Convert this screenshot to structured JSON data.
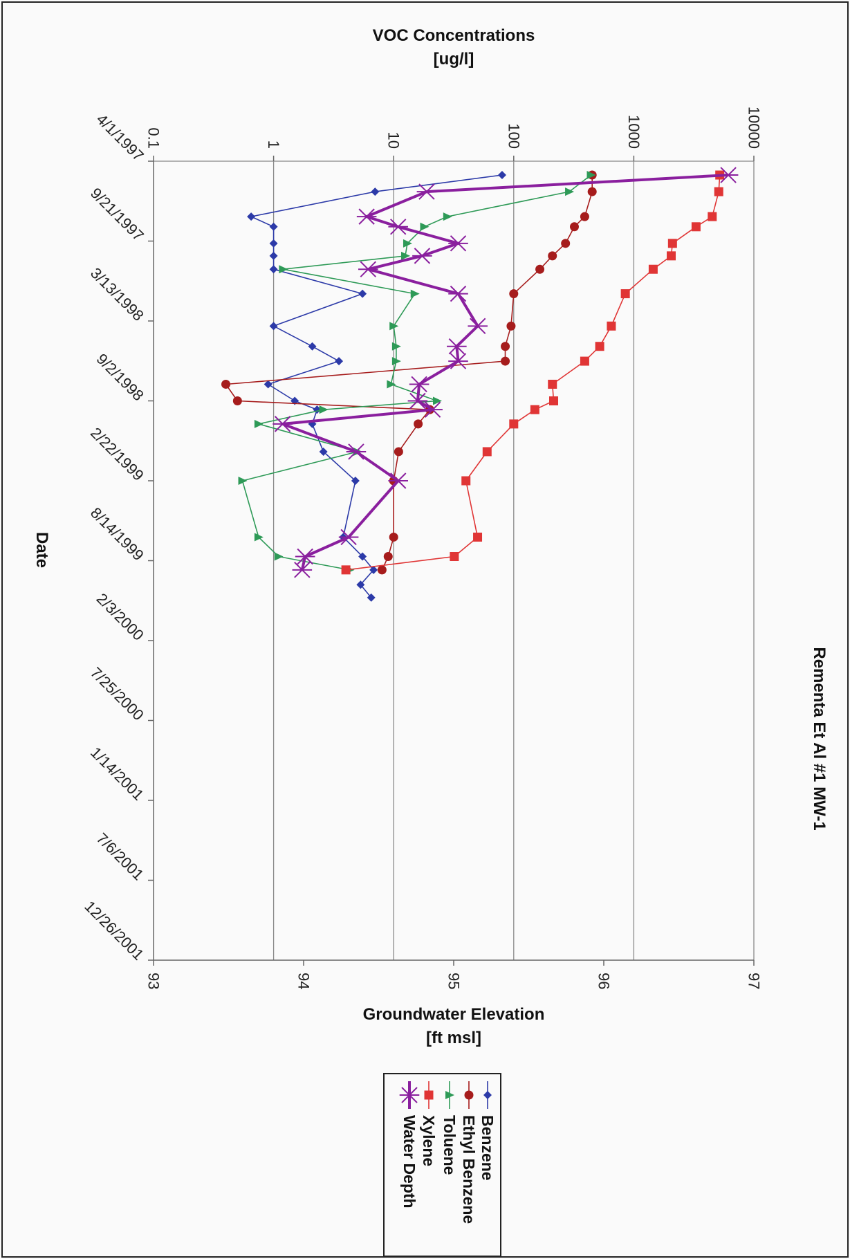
{
  "chart_data": {
    "type": "line",
    "title": "Rementa Et Al #1 MW-1",
    "xlabel": "Date",
    "x": [
      "4/1/1997",
      "9/21/1997",
      "3/13/1998",
      "9/2/1998",
      "2/22/1999",
      "8/14/1999",
      "2/3/2000",
      "7/25/2000",
      "1/14/2001",
      "7/6/2001",
      "12/26/2001"
    ],
    "x_axis_labels": [
      "4/1/1997",
      "9/21/1997",
      "3/13/1998",
      "9/2/1998",
      "2/22/1999",
      "8/14/1999",
      "2/3/2000",
      "7/25/2000",
      "1/14/2001",
      "7/6/2001",
      "12/26/2001"
    ],
    "y_left": {
      "label_line1": "VOC Concentrations",
      "label_line2": "[ug/l]",
      "scale": "log",
      "range": [
        0.1,
        10000
      ],
      "ticks": [
        "0.1",
        "1",
        "10",
        "100",
        "1000",
        "10000"
      ],
      "gridlines": [
        1,
        10,
        100,
        1000
      ]
    },
    "y_right": {
      "label_line1": "Groundwater Elevation",
      "label_line2": "[ft msl]",
      "range": [
        93,
        97
      ],
      "ticks": [
        "93",
        "94",
        "95",
        "96",
        "97"
      ]
    },
    "legend_position": "right",
    "series": [
      {
        "name": "Benzene",
        "axis": "left",
        "color": "#2c3aa8",
        "marker": "diamond",
        "width": 1.6,
        "points": [
          [
            "1997-05-01",
            80
          ],
          [
            "1997-06-06",
            7
          ],
          [
            "1997-07-30",
            0.65
          ],
          [
            "1997-08-21",
            1
          ],
          [
            "1997-09-26",
            1
          ],
          [
            "1997-10-23",
            1
          ],
          [
            "1997-11-21",
            1
          ],
          [
            "1998-01-13",
            5.5
          ],
          [
            "1998-03-24",
            1
          ],
          [
            "1998-05-07",
            2.1
          ],
          [
            "1998-06-08",
            3.5
          ],
          [
            "1998-07-28",
            0.9
          ],
          [
            "1998-09-02",
            1.5
          ],
          [
            "1998-09-21",
            2.3
          ],
          [
            "1998-10-22",
            2.1
          ],
          [
            "1998-12-21",
            2.6
          ],
          [
            "1999-02-22",
            4.8
          ],
          [
            "1999-06-24",
            3.8
          ],
          [
            "1999-08-05",
            5.5
          ],
          [
            "1999-09-03",
            6.8
          ],
          [
            "1999-10-05",
            5.3
          ],
          [
            "1999-11-02",
            6.5
          ]
        ]
      },
      {
        "name": "Ethyl Benzene",
        "axis": "left",
        "color": "#a61c1c",
        "marker": "circle",
        "width": 1.6,
        "points": [
          [
            "1997-05-01",
            450
          ],
          [
            "1997-06-06",
            450
          ],
          [
            "1997-07-30",
            390
          ],
          [
            "1997-08-21",
            320
          ],
          [
            "1997-09-26",
            270
          ],
          [
            "1997-10-23",
            210
          ],
          [
            "1997-11-21",
            165
          ],
          [
            "1998-01-13",
            100
          ],
          [
            "1998-03-24",
            95
          ],
          [
            "1998-05-07",
            85
          ],
          [
            "1998-06-08",
            85
          ],
          [
            "1998-07-28",
            0.4
          ],
          [
            "1998-09-02",
            0.5
          ],
          [
            "1998-09-21",
            20
          ],
          [
            "1998-10-22",
            16
          ],
          [
            "1998-12-21",
            11
          ],
          [
            "1999-02-22",
            10
          ],
          [
            "1999-06-24",
            10
          ],
          [
            "1999-08-05",
            9
          ],
          [
            "1999-09-03",
            8
          ]
        ]
      },
      {
        "name": "Toluene",
        "axis": "left",
        "color": "#2e9a57",
        "marker": "triangle",
        "width": 1.6,
        "points": [
          [
            "1997-05-01",
            440
          ],
          [
            "1997-06-06",
            290
          ],
          [
            "1997-07-30",
            28
          ],
          [
            "1997-08-21",
            18
          ],
          [
            "1997-09-26",
            13
          ],
          [
            "1997-10-23",
            12.5
          ],
          [
            "1997-11-21",
            1.2
          ],
          [
            "1998-01-13",
            15
          ],
          [
            "1998-03-24",
            10
          ],
          [
            "1998-05-07",
            10.5
          ],
          [
            "1998-06-08",
            10.5
          ],
          [
            "1998-07-28",
            9.5
          ],
          [
            "1998-09-02",
            23
          ],
          [
            "1998-09-21",
            2.6
          ],
          [
            "1998-10-22",
            0.75
          ],
          [
            "1998-12-21",
            5
          ],
          [
            "1999-02-22",
            0.55
          ],
          [
            "1999-06-24",
            0.75
          ],
          [
            "1999-08-05",
            1.1
          ],
          [
            "1999-09-03",
            4.3
          ]
        ]
      },
      {
        "name": "Xylene",
        "axis": "left",
        "color": "#e03535",
        "marker": "square",
        "width": 1.6,
        "points": [
          [
            "1997-05-01",
            5200
          ],
          [
            "1997-06-06",
            5100
          ],
          [
            "1997-07-30",
            4500
          ],
          [
            "1997-08-21",
            3300
          ],
          [
            "1997-09-26",
            2100
          ],
          [
            "1997-10-23",
            2050
          ],
          [
            "1997-11-21",
            1450
          ],
          [
            "1998-01-13",
            850
          ],
          [
            "1998-03-24",
            650
          ],
          [
            "1998-05-07",
            520
          ],
          [
            "1998-06-08",
            390
          ],
          [
            "1998-07-28",
            210
          ],
          [
            "1998-09-02",
            215
          ],
          [
            "1998-09-21",
            150
          ],
          [
            "1998-10-22",
            100
          ],
          [
            "1998-12-21",
            60
          ],
          [
            "1999-02-22",
            40
          ],
          [
            "1999-06-24",
            50
          ],
          [
            "1999-08-05",
            32
          ],
          [
            "1999-09-03",
            4
          ]
        ]
      },
      {
        "name": "Water Depth",
        "axis": "right",
        "color": "#8a1f9e",
        "marker": "star",
        "width": 4,
        "points": [
          [
            "1997-05-01",
            96.83
          ],
          [
            "1997-06-06",
            94.82
          ],
          [
            "1997-07-30",
            94.42
          ],
          [
            "1997-08-21",
            94.63
          ],
          [
            "1997-09-26",
            95.03
          ],
          [
            "1997-10-23",
            94.79
          ],
          [
            "1997-11-21",
            94.43
          ],
          [
            "1998-01-13",
            95.03
          ],
          [
            "1998-03-24",
            95.16
          ],
          [
            "1998-05-07",
            95.02
          ],
          [
            "1998-06-08",
            95.03
          ],
          [
            "1998-07-28",
            94.77
          ],
          [
            "1998-09-02",
            94.76
          ],
          [
            "1998-09-21",
            94.86
          ],
          [
            "1998-10-22",
            93.86
          ],
          [
            "1998-12-21",
            94.35
          ],
          [
            "1999-02-22",
            94.63
          ],
          [
            "1999-06-24",
            94.3
          ],
          [
            "1999-08-05",
            94.01
          ],
          [
            "1999-09-03",
            93.99
          ]
        ]
      }
    ]
  }
}
